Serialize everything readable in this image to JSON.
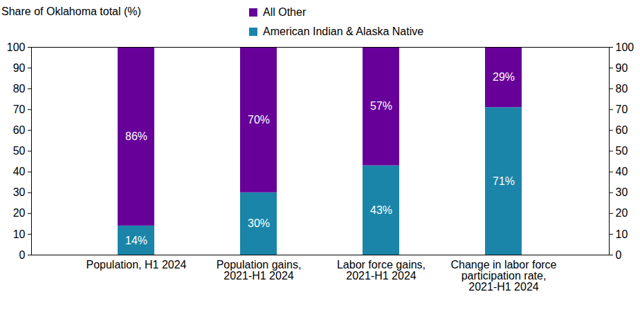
{
  "chart_data": {
    "type": "bar",
    "stacked": true,
    "data_labels": true,
    "legend": "top",
    "grid": false,
    "ylabel": "Share of Oklahoma total (%)",
    "categories": [
      "Population, H1 2024",
      "Population gains, 2021-H1 2024",
      "Labor force gains, 2021-H1 2024",
      "Change in labor force participation rate, 2021-H1 2024"
    ],
    "series": [
      {
        "name": "All Other",
        "color": "#660099",
        "values": [
          86,
          70,
          57,
          29
        ],
        "value_labels": [
          "86%",
          "70%",
          "57%",
          "29%"
        ]
      },
      {
        "name": "American Indian & Alaska Native",
        "color": "#1a85a9",
        "values": [
          14,
          30,
          43,
          71
        ],
        "value_labels": [
          "14%",
          "30%",
          "43%",
          "71%"
        ]
      }
    ],
    "ylim": [
      0,
      100
    ],
    "yticks": [
      0,
      10,
      20,
      30,
      40,
      50,
      60,
      70,
      80,
      90,
      100
    ],
    "y2lim": [
      0,
      100
    ],
    "y2ticks": [
      0,
      10,
      20,
      30,
      40,
      50,
      60,
      70,
      80,
      90,
      100
    ]
  }
}
